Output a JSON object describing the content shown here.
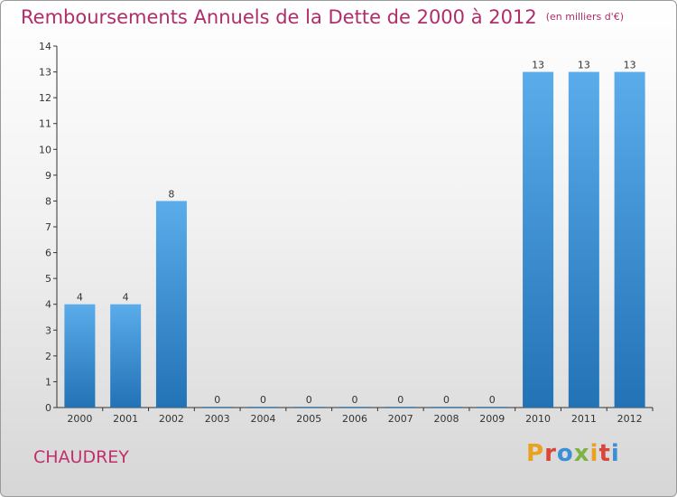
{
  "title": "Remboursements Annuels de la Dette de 2000 à 2012",
  "unit": "(en milliers d'€)",
  "commune": "CHAUDREY",
  "logo": {
    "letters": [
      "P",
      "r",
      "o",
      "x",
      "i",
      "t",
      "i"
    ]
  },
  "colors": {
    "bar_top": "#5aacea",
    "bar_bottom": "#2272b6",
    "title": "#b02d6a"
  },
  "chart_data": {
    "type": "bar",
    "title": "Remboursements Annuels de la Dette de 2000 à 2012",
    "unit": "(en milliers d'€)",
    "categories": [
      "2000",
      "2001",
      "2002",
      "2003",
      "2004",
      "2005",
      "2006",
      "2007",
      "2008",
      "2009",
      "2010",
      "2011",
      "2012"
    ],
    "values": [
      4,
      4,
      8,
      0,
      0,
      0,
      0,
      0,
      0,
      0,
      13,
      13,
      13
    ],
    "value_labels": [
      "4",
      "4",
      "8",
      "0",
      "0",
      "0",
      "0",
      "0",
      "0",
      "0",
      "13",
      "13",
      "13"
    ],
    "y_ticks": [
      "0",
      "1",
      "2",
      "3",
      "4",
      "5",
      "6",
      "7",
      "8",
      "9",
      "10",
      "11",
      "12",
      "13",
      "14"
    ],
    "ylim": [
      0,
      14
    ],
    "grid": false,
    "legend": "none"
  }
}
